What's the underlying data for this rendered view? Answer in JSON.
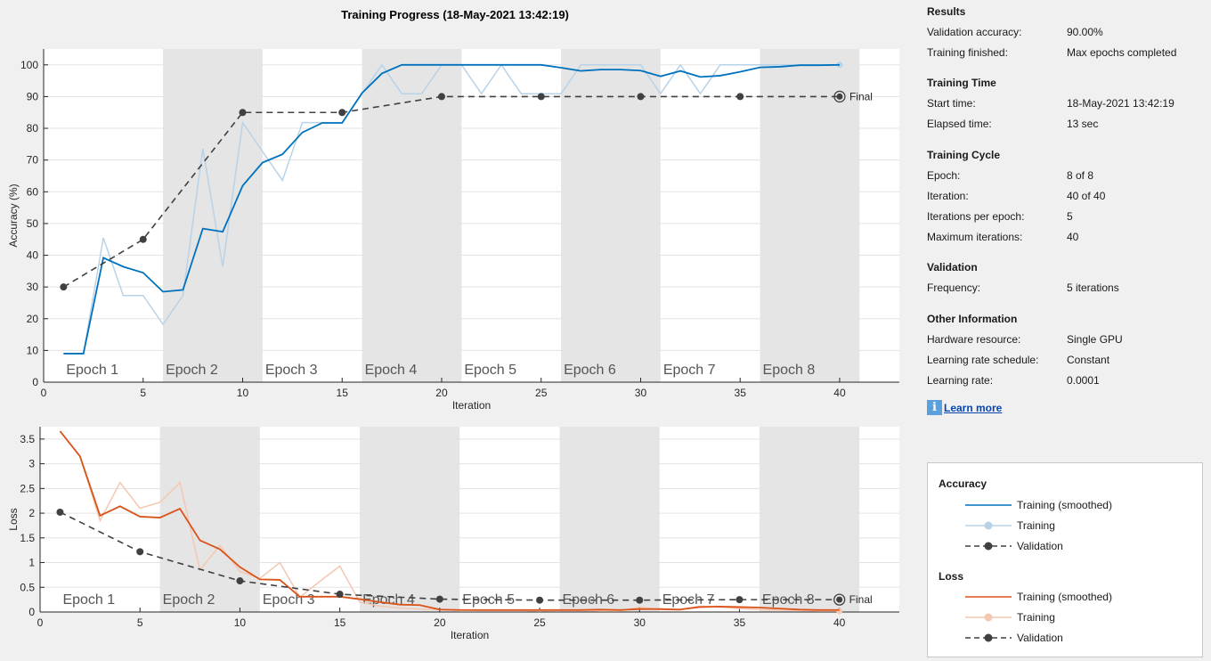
{
  "colors": {
    "acc_smoothed": "#0072bd",
    "acc_raw": "#b8d3e8",
    "loss_smoothed": "#d95319",
    "loss_raw": "#f4c7b2",
    "validation": "#404040",
    "epoch_shade": "#e5e5e5",
    "grid": "#e3e3e3"
  },
  "chart_data": [
    {
      "type": "line",
      "title": "Training Progress (18-May-2021 13:42:19)",
      "xlabel": "Iteration",
      "ylabel": "Accuracy (%)",
      "xlim": [
        0,
        43
      ],
      "ylim": [
        0,
        105
      ],
      "xticks": [
        0,
        5,
        10,
        15,
        20,
        25,
        30,
        35,
        40
      ],
      "yticks": [
        0,
        10,
        20,
        30,
        40,
        50,
        60,
        70,
        80,
        90,
        100
      ],
      "grid": true,
      "epochs": [
        "Epoch 1",
        "Epoch 2",
        "Epoch 3",
        "Epoch 4",
        "Epoch 5",
        "Epoch 6",
        "Epoch 7",
        "Epoch 8"
      ],
      "final_label": "Final",
      "series": [
        {
          "name": "Training (smoothed)",
          "x": [
            1,
            2,
            3,
            4,
            5,
            6,
            7,
            8,
            9,
            10,
            11,
            12,
            13,
            14,
            15,
            16,
            17,
            18,
            19,
            20,
            21,
            22,
            23,
            24,
            25,
            26,
            27,
            28,
            29,
            30,
            31,
            32,
            33,
            34,
            35,
            36,
            37,
            38,
            39,
            40
          ],
          "values": [
            9,
            9,
            39.2,
            36.4,
            34.5,
            28.5,
            29.1,
            48.4,
            47.4,
            61.9,
            69.2,
            71.8,
            78.7,
            81.7,
            81.7,
            91.1,
            97.3,
            100,
            100,
            100,
            100,
            100,
            100,
            100,
            100,
            99.1,
            98.1,
            98.5,
            98.5,
            98.2,
            96.4,
            98.1,
            96.2,
            96.6,
            97.8,
            99.2,
            99.4,
            99.9,
            99.9,
            100
          ]
        },
        {
          "name": "Training",
          "x": [
            1,
            2,
            3,
            4,
            5,
            6,
            7,
            8,
            9,
            10,
            11,
            12,
            13,
            14,
            15,
            16,
            17,
            18,
            19,
            20,
            21,
            22,
            23,
            24,
            25,
            26,
            27,
            28,
            29,
            30,
            31,
            32,
            33,
            34,
            35,
            36,
            37,
            38,
            39,
            40
          ],
          "values": [
            9,
            9,
            45.5,
            27.3,
            27.3,
            18.2,
            27.3,
            73.6,
            36.4,
            81.8,
            72.7,
            63.6,
            81.8,
            81.8,
            81.8,
            90.9,
            100,
            90.9,
            90.9,
            100,
            100,
            90.9,
            100,
            90.9,
            90.9,
            90.9,
            100,
            100,
            100,
            100,
            90.9,
            100,
            90.9,
            100,
            100,
            100,
            100,
            100,
            100,
            100
          ]
        },
        {
          "name": "Validation",
          "x": [
            1,
            5,
            10,
            15,
            20,
            25,
            30,
            35,
            40
          ],
          "values": [
            30,
            45,
            85,
            85,
            90,
            90,
            90,
            90,
            90
          ]
        }
      ]
    },
    {
      "type": "line",
      "xlabel": "Iteration",
      "ylabel": "Loss",
      "xlim": [
        0,
        43
      ],
      "ylim": [
        0,
        3.75
      ],
      "xticks": [
        0,
        5,
        10,
        15,
        20,
        25,
        30,
        35,
        40
      ],
      "yticks": [
        0,
        0.5,
        1,
        1.5,
        2,
        2.5,
        3,
        3.5
      ],
      "ytick_labels": [
        "0",
        "0.5",
        "1",
        "1.5",
        "2",
        "2.5",
        "3",
        "3.5"
      ],
      "grid": true,
      "epochs": [
        "Epoch 1",
        "Epoch 2",
        "Epoch 3",
        "Epoch 4",
        "Epoch 5",
        "Epoch 6",
        "Epoch 7",
        "Epoch 8"
      ],
      "final_label": "Final",
      "series": [
        {
          "name": "Training (smoothed)",
          "x": [
            1,
            2,
            3,
            4,
            5,
            6,
            7,
            8,
            9,
            10,
            11,
            12,
            13,
            14,
            15,
            16,
            17,
            18,
            19,
            20,
            21,
            22,
            23,
            24,
            25,
            26,
            27,
            28,
            29,
            30,
            31,
            32,
            33,
            34,
            35,
            36,
            37,
            38,
            39,
            40
          ],
          "values": [
            3.66,
            3.15,
            1.95,
            2.14,
            1.93,
            1.91,
            2.09,
            1.45,
            1.27,
            0.91,
            0.66,
            0.65,
            0.31,
            0.31,
            0.31,
            0.26,
            0.2,
            0.15,
            0.14,
            0.05,
            0.04,
            0.04,
            0.04,
            0.04,
            0.04,
            0.04,
            0.04,
            0.05,
            0.04,
            0.06,
            0.06,
            0.05,
            0.1,
            0.11,
            0.1,
            0.09,
            0.07,
            0.05,
            0.04,
            0.04
          ]
        },
        {
          "name": "Training",
          "x": [
            1,
            2,
            3,
            4,
            5,
            6,
            7,
            8,
            9,
            10,
            11,
            12,
            13,
            14,
            15,
            16,
            17,
            18,
            19,
            20,
            21,
            22,
            23,
            24,
            25,
            26,
            27,
            28,
            29,
            30,
            31,
            32,
            33,
            34,
            35,
            36,
            37,
            38,
            39,
            40
          ],
          "values": [
            3.66,
            3.15,
            1.85,
            2.62,
            2.1,
            2.22,
            2.62,
            0.85,
            1.35,
            0.82,
            0.68,
            1.0,
            0.3,
            0.62,
            0.93,
            0.2,
            0.12,
            0.08,
            0.06,
            0.05,
            0.04,
            0.03,
            0.03,
            0.03,
            0.02,
            0.03,
            0.03,
            0.02,
            0.02,
            0.1,
            0.05,
            0.04,
            0.12,
            0.1,
            0.07,
            0.05,
            0.04,
            0.03,
            0.02,
            0.02
          ]
        },
        {
          "name": "Validation",
          "x": [
            1,
            5,
            10,
            15,
            20,
            25,
            30,
            35,
            40
          ],
          "values": [
            2.02,
            1.22,
            0.63,
            0.36,
            0.26,
            0.24,
            0.24,
            0.25,
            0.25
          ]
        }
      ]
    }
  ],
  "info": {
    "results": {
      "title": "Results",
      "rows": [
        {
          "key": "Validation accuracy:",
          "value": "90.00%"
        },
        {
          "key": "Training finished:",
          "value": "Max epochs completed"
        }
      ]
    },
    "time": {
      "title": "Training Time",
      "rows": [
        {
          "key": "Start time:",
          "value": "18-May-2021 13:42:19"
        },
        {
          "key": "Elapsed time:",
          "value": "13 sec"
        }
      ]
    },
    "cycle": {
      "title": "Training Cycle",
      "rows": [
        {
          "key": "Epoch:",
          "value": "8 of 8"
        },
        {
          "key": "Iteration:",
          "value": "40 of 40"
        },
        {
          "key": "Iterations per epoch:",
          "value": "5"
        },
        {
          "key": "Maximum iterations:",
          "value": "40"
        }
      ]
    },
    "validation": {
      "title": "Validation",
      "rows": [
        {
          "key": "Frequency:",
          "value": "5 iterations"
        }
      ]
    },
    "other": {
      "title": "Other Information",
      "rows": [
        {
          "key": "Hardware resource:",
          "value": "Single GPU"
        },
        {
          "key": "Learning rate schedule:",
          "value": "Constant"
        },
        {
          "key": "Learning rate:",
          "value": "0.0001"
        }
      ]
    },
    "learn_more": "Learn more",
    "learn_more_icon": "info-icon"
  },
  "legend": {
    "accuracy_title": "Accuracy",
    "loss_title": "Loss",
    "accuracy_items": [
      "Training (smoothed)",
      "Training",
      "Validation"
    ],
    "loss_items": [
      "Training (smoothed)",
      "Training",
      "Validation"
    ]
  }
}
